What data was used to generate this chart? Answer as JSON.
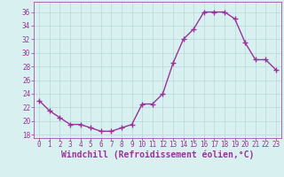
{
  "x": [
    0,
    1,
    2,
    3,
    4,
    5,
    6,
    7,
    8,
    9,
    10,
    11,
    12,
    13,
    14,
    15,
    16,
    17,
    18,
    19,
    20,
    21,
    22,
    23
  ],
  "y": [
    23,
    21.5,
    20.5,
    19.5,
    19.5,
    19.0,
    18.5,
    18.5,
    19.0,
    19.5,
    22.5,
    22.5,
    24.0,
    28.5,
    32.0,
    33.5,
    36.0,
    36.0,
    36.0,
    35.0,
    31.5,
    29.0,
    29.0,
    27.5
  ],
  "line_color": "#993399",
  "marker": "+",
  "marker_size": 4,
  "linewidth": 1.0,
  "background_color": "#d8f0f0",
  "grid_color": "#b8d8d8",
  "xlabel": "Windchill (Refroidissement éolien,°C)",
  "xlabel_fontsize": 7,
  "xlabel_color": "#993399",
  "tick_color": "#993399",
  "tick_fontsize": 5.5,
  "ylim": [
    17.5,
    37.5
  ],
  "yticks": [
    18,
    20,
    22,
    24,
    26,
    28,
    30,
    32,
    34,
    36
  ],
  "xlim": [
    -0.5,
    23.5
  ],
  "xticks": [
    0,
    1,
    2,
    3,
    4,
    5,
    6,
    7,
    8,
    9,
    10,
    11,
    12,
    13,
    14,
    15,
    16,
    17,
    18,
    19,
    20,
    21,
    22,
    23
  ]
}
